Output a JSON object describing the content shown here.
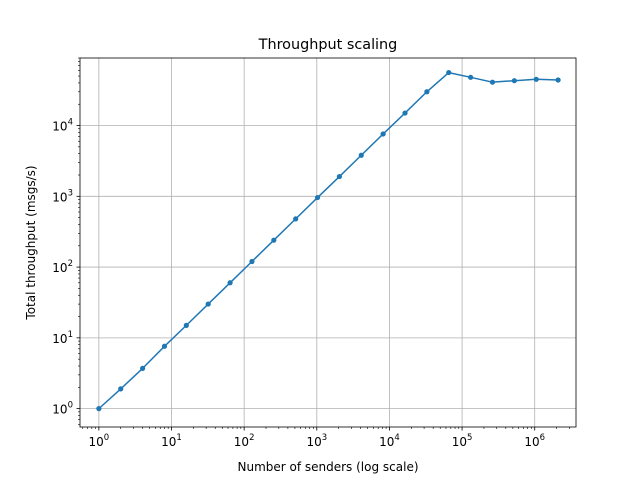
{
  "chart_data": {
    "type": "line",
    "title": "Throughput scaling",
    "xlabel": "Number of senders (log scale)",
    "ylabel": "Total throughput (msgs/s)",
    "xscale": "log",
    "yscale": "log",
    "xlim": [
      0.55,
      3700000
    ],
    "ylim": [
      0.55,
      90000
    ],
    "grid": true,
    "series_color": "#1f77b4",
    "x_ticks": [
      {
        "value": 1,
        "mantissa": "10",
        "exponent": "0"
      },
      {
        "value": 10,
        "mantissa": "10",
        "exponent": "1"
      },
      {
        "value": 100,
        "mantissa": "10",
        "exponent": "2"
      },
      {
        "value": 1000,
        "mantissa": "10",
        "exponent": "3"
      },
      {
        "value": 10000,
        "mantissa": "10",
        "exponent": "4"
      },
      {
        "value": 100000,
        "mantissa": "10",
        "exponent": "5"
      },
      {
        "value": 1000000,
        "mantissa": "10",
        "exponent": "6"
      }
    ],
    "y_ticks": [
      {
        "value": 1,
        "mantissa": "10",
        "exponent": "0"
      },
      {
        "value": 10,
        "mantissa": "10",
        "exponent": "1"
      },
      {
        "value": 100,
        "mantissa": "10",
        "exponent": "2"
      },
      {
        "value": 1000,
        "mantissa": "10",
        "exponent": "3"
      },
      {
        "value": 10000,
        "mantissa": "10",
        "exponent": "4"
      }
    ],
    "series": [
      {
        "x": [
          1,
          2,
          4,
          8,
          16,
          32,
          64,
          128,
          256,
          512,
          1024,
          2048,
          4096,
          8192,
          16384,
          32768,
          65536,
          131072,
          262144,
          524288,
          1048576,
          2097152
        ],
        "y": [
          1.0,
          1.9,
          3.7,
          7.6,
          15,
          30,
          60,
          120,
          240,
          480,
          960,
          1900,
          3800,
          7600,
          15000,
          30000,
          56000,
          48000,
          41000,
          43000,
          45000,
          44000
        ]
      }
    ]
  }
}
